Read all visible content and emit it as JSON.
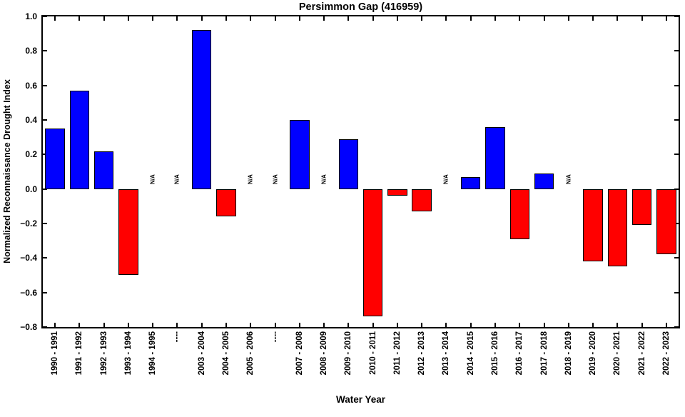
{
  "chart_data": {
    "type": "bar",
    "title": "Persimmon Gap (416959)",
    "xlabel": "Water Year",
    "ylabel": "Normalized Reconnaissance Drought Index",
    "categories": [
      "1990 - 1991",
      "1991 - 1992",
      "1992 - 1993",
      "1993 - 1994",
      "1994 - 1995",
      "----",
      "2003 - 2004",
      "2004 - 2005",
      "2005 - 2006",
      "----",
      "2007 - 2008",
      "2008 - 2009",
      "2009 - 2010",
      "2010 - 2011",
      "2011 - 2012",
      "2012 - 2013",
      "2013 - 2014",
      "2014 - 2015",
      "2015 - 2016",
      "2016 - 2017",
      "2017 - 2018",
      "2018 - 2019",
      "2019 - 2020",
      "2020 - 2021",
      "2021 - 2022",
      "2022 - 2023"
    ],
    "values": [
      0.35,
      0.57,
      0.22,
      -0.5,
      null,
      null,
      0.92,
      -0.16,
      null,
      null,
      0.4,
      null,
      0.29,
      -0.74,
      -0.04,
      -0.13,
      null,
      0.07,
      0.36,
      -0.29,
      0.09,
      null,
      -0.42,
      -0.45,
      -0.21,
      -0.38
    ],
    "missing_label": "N/A",
    "ylim": [
      -0.8,
      1.0
    ],
    "ytick_values": [
      1.0,
      0.8,
      0.6,
      0.4,
      0.2,
      0.0,
      -0.2,
      -0.4,
      -0.6,
      -0.8
    ],
    "ytick_labels": [
      "1.0",
      "0.8",
      "0.6",
      "0.4",
      "0.2",
      "0.0",
      "−0.2",
      "−0.4",
      "−0.6",
      "−0.8"
    ],
    "bar_width_fraction": 0.8,
    "grid": false,
    "legend_position": null,
    "colors": {
      "positive_bar": "#0000FF",
      "negative_bar": "#FF0000",
      "bar_edge": "#000000",
      "axis": "#000000",
      "background": "#FFFFFF",
      "text": "#000000"
    }
  }
}
